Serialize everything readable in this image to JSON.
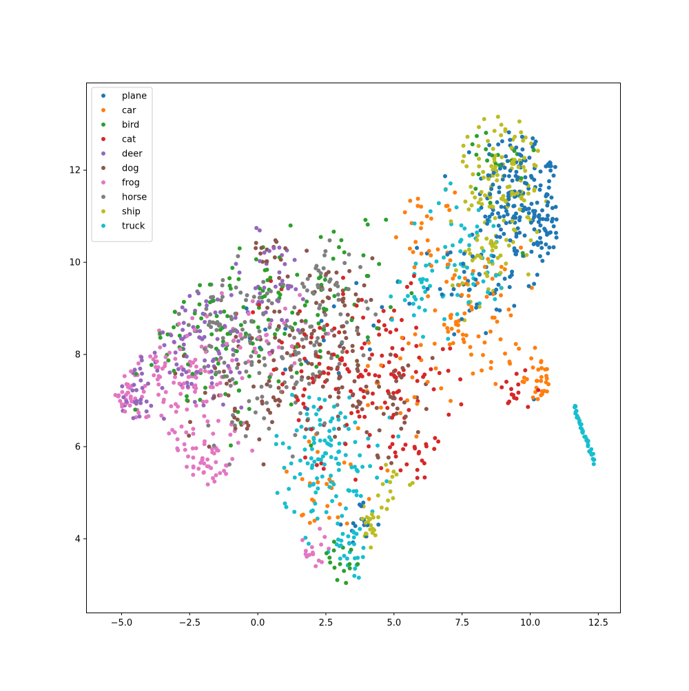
{
  "chart_data": {
    "type": "scatter",
    "title": "",
    "xlabel": "",
    "ylabel": "",
    "xlim": [
      -6.3,
      13.3
    ],
    "ylim": [
      2.4,
      13.9
    ],
    "x_ticks": [
      -5.0,
      -2.5,
      0.0,
      2.5,
      5.0,
      7.5,
      10.0,
      12.5
    ],
    "x_tick_labels": [
      "−5.0",
      "−2.5",
      "0.0",
      "2.5",
      "5.0",
      "7.5",
      "10.0",
      "12.5"
    ],
    "y_ticks": [
      4,
      6,
      8,
      10,
      12
    ],
    "y_tick_labels": [
      "4",
      "6",
      "8",
      "10",
      "12"
    ],
    "grid": false,
    "legend": "top-left",
    "series": [
      {
        "name": "plane",
        "color": "#1f77b4",
        "clusters": [
          [
            9.3,
            11.5,
            1.0,
            1.3,
            130
          ],
          [
            10.6,
            10.8,
            0.5,
            1.5,
            70
          ],
          [
            7.8,
            9.6,
            1.5,
            1.0,
            50
          ],
          [
            2.8,
            8.5,
            2.5,
            1.8,
            20
          ],
          [
            3.8,
            4.3,
            0.5,
            0.4,
            15
          ]
        ]
      },
      {
        "name": "car",
        "color": "#ff7f0e",
        "clusters": [
          [
            7.8,
            8.8,
            1.6,
            1.3,
            80
          ],
          [
            10.4,
            7.6,
            0.5,
            0.8,
            30
          ],
          [
            6.2,
            10.8,
            0.8,
            0.6,
            25
          ],
          [
            2.5,
            5.0,
            1.5,
            1.0,
            25
          ],
          [
            5.0,
            7.0,
            1.5,
            1.5,
            20
          ]
        ]
      },
      {
        "name": "bird",
        "color": "#2ca02c",
        "clusters": [
          [
            -1.0,
            8.5,
            2.8,
            1.5,
            110
          ],
          [
            2.5,
            9.5,
            1.8,
            1.5,
            45
          ],
          [
            8.5,
            12.0,
            1.5,
            1.0,
            20
          ],
          [
            3.0,
            3.5,
            0.8,
            0.5,
            15
          ]
        ]
      },
      {
        "name": "cat",
        "color": "#d62728",
        "clusters": [
          [
            4.5,
            7.5,
            2.2,
            1.5,
            110
          ],
          [
            1.5,
            8.0,
            1.5,
            1.5,
            40
          ],
          [
            9.5,
            7.0,
            0.6,
            0.6,
            15
          ],
          [
            6.0,
            6.0,
            1.0,
            0.8,
            20
          ]
        ]
      },
      {
        "name": "deer",
        "color": "#9467bd",
        "clusters": [
          [
            -2.5,
            8.2,
            2.2,
            1.2,
            90
          ],
          [
            0.5,
            9.5,
            1.5,
            1.0,
            40
          ],
          [
            -4.5,
            7.2,
            0.6,
            0.6,
            25
          ]
        ]
      },
      {
        "name": "dog",
        "color": "#8c564b",
        "clusters": [
          [
            2.5,
            8.3,
            2.0,
            1.5,
            110
          ],
          [
            5.0,
            7.0,
            1.2,
            1.0,
            40
          ],
          [
            -0.5,
            7.0,
            1.8,
            1.0,
            40
          ],
          [
            0.5,
            10.3,
            0.6,
            0.4,
            15
          ]
        ]
      },
      {
        "name": "frog",
        "color": "#e377c2",
        "clusters": [
          [
            -3.0,
            7.5,
            1.8,
            1.3,
            100
          ],
          [
            -2.0,
            5.8,
            1.2,
            0.7,
            50
          ],
          [
            -4.8,
            7.0,
            0.4,
            0.4,
            30
          ],
          [
            0.0,
            8.5,
            1.5,
            1.0,
            30
          ],
          [
            2.0,
            3.5,
            0.8,
            0.5,
            15
          ]
        ]
      },
      {
        "name": "horse",
        "color": "#7f7f7f",
        "clusters": [
          [
            0.5,
            8.0,
            2.2,
            1.5,
            120
          ],
          [
            2.5,
            9.5,
            1.2,
            1.2,
            40
          ],
          [
            -1.5,
            9.0,
            1.2,
            0.8,
            30
          ]
        ]
      },
      {
        "name": "ship",
        "color": "#bcbd22",
        "clusters": [
          [
            9.0,
            11.8,
            1.2,
            1.3,
            120
          ],
          [
            8.3,
            10.0,
            1.0,
            0.8,
            40
          ],
          [
            4.3,
            4.3,
            0.4,
            0.4,
            20
          ],
          [
            5.0,
            5.0,
            0.8,
            0.6,
            15
          ]
        ]
      },
      {
        "name": "truck",
        "color": "#17becf",
        "clusters": [
          [
            2.5,
            5.8,
            1.6,
            1.2,
            120
          ],
          [
            7.5,
            10.0,
            1.6,
            1.2,
            60
          ],
          [
            3.5,
            3.8,
            0.6,
            0.6,
            30
          ],
          [
            6.0,
            9.4,
            0.8,
            0.6,
            20
          ]
        ]
      }
    ],
    "tail_line": {
      "series": "truck",
      "from": [
        11.6,
        6.9
      ],
      "to": [
        12.35,
        5.65
      ],
      "n": 35
    }
  }
}
